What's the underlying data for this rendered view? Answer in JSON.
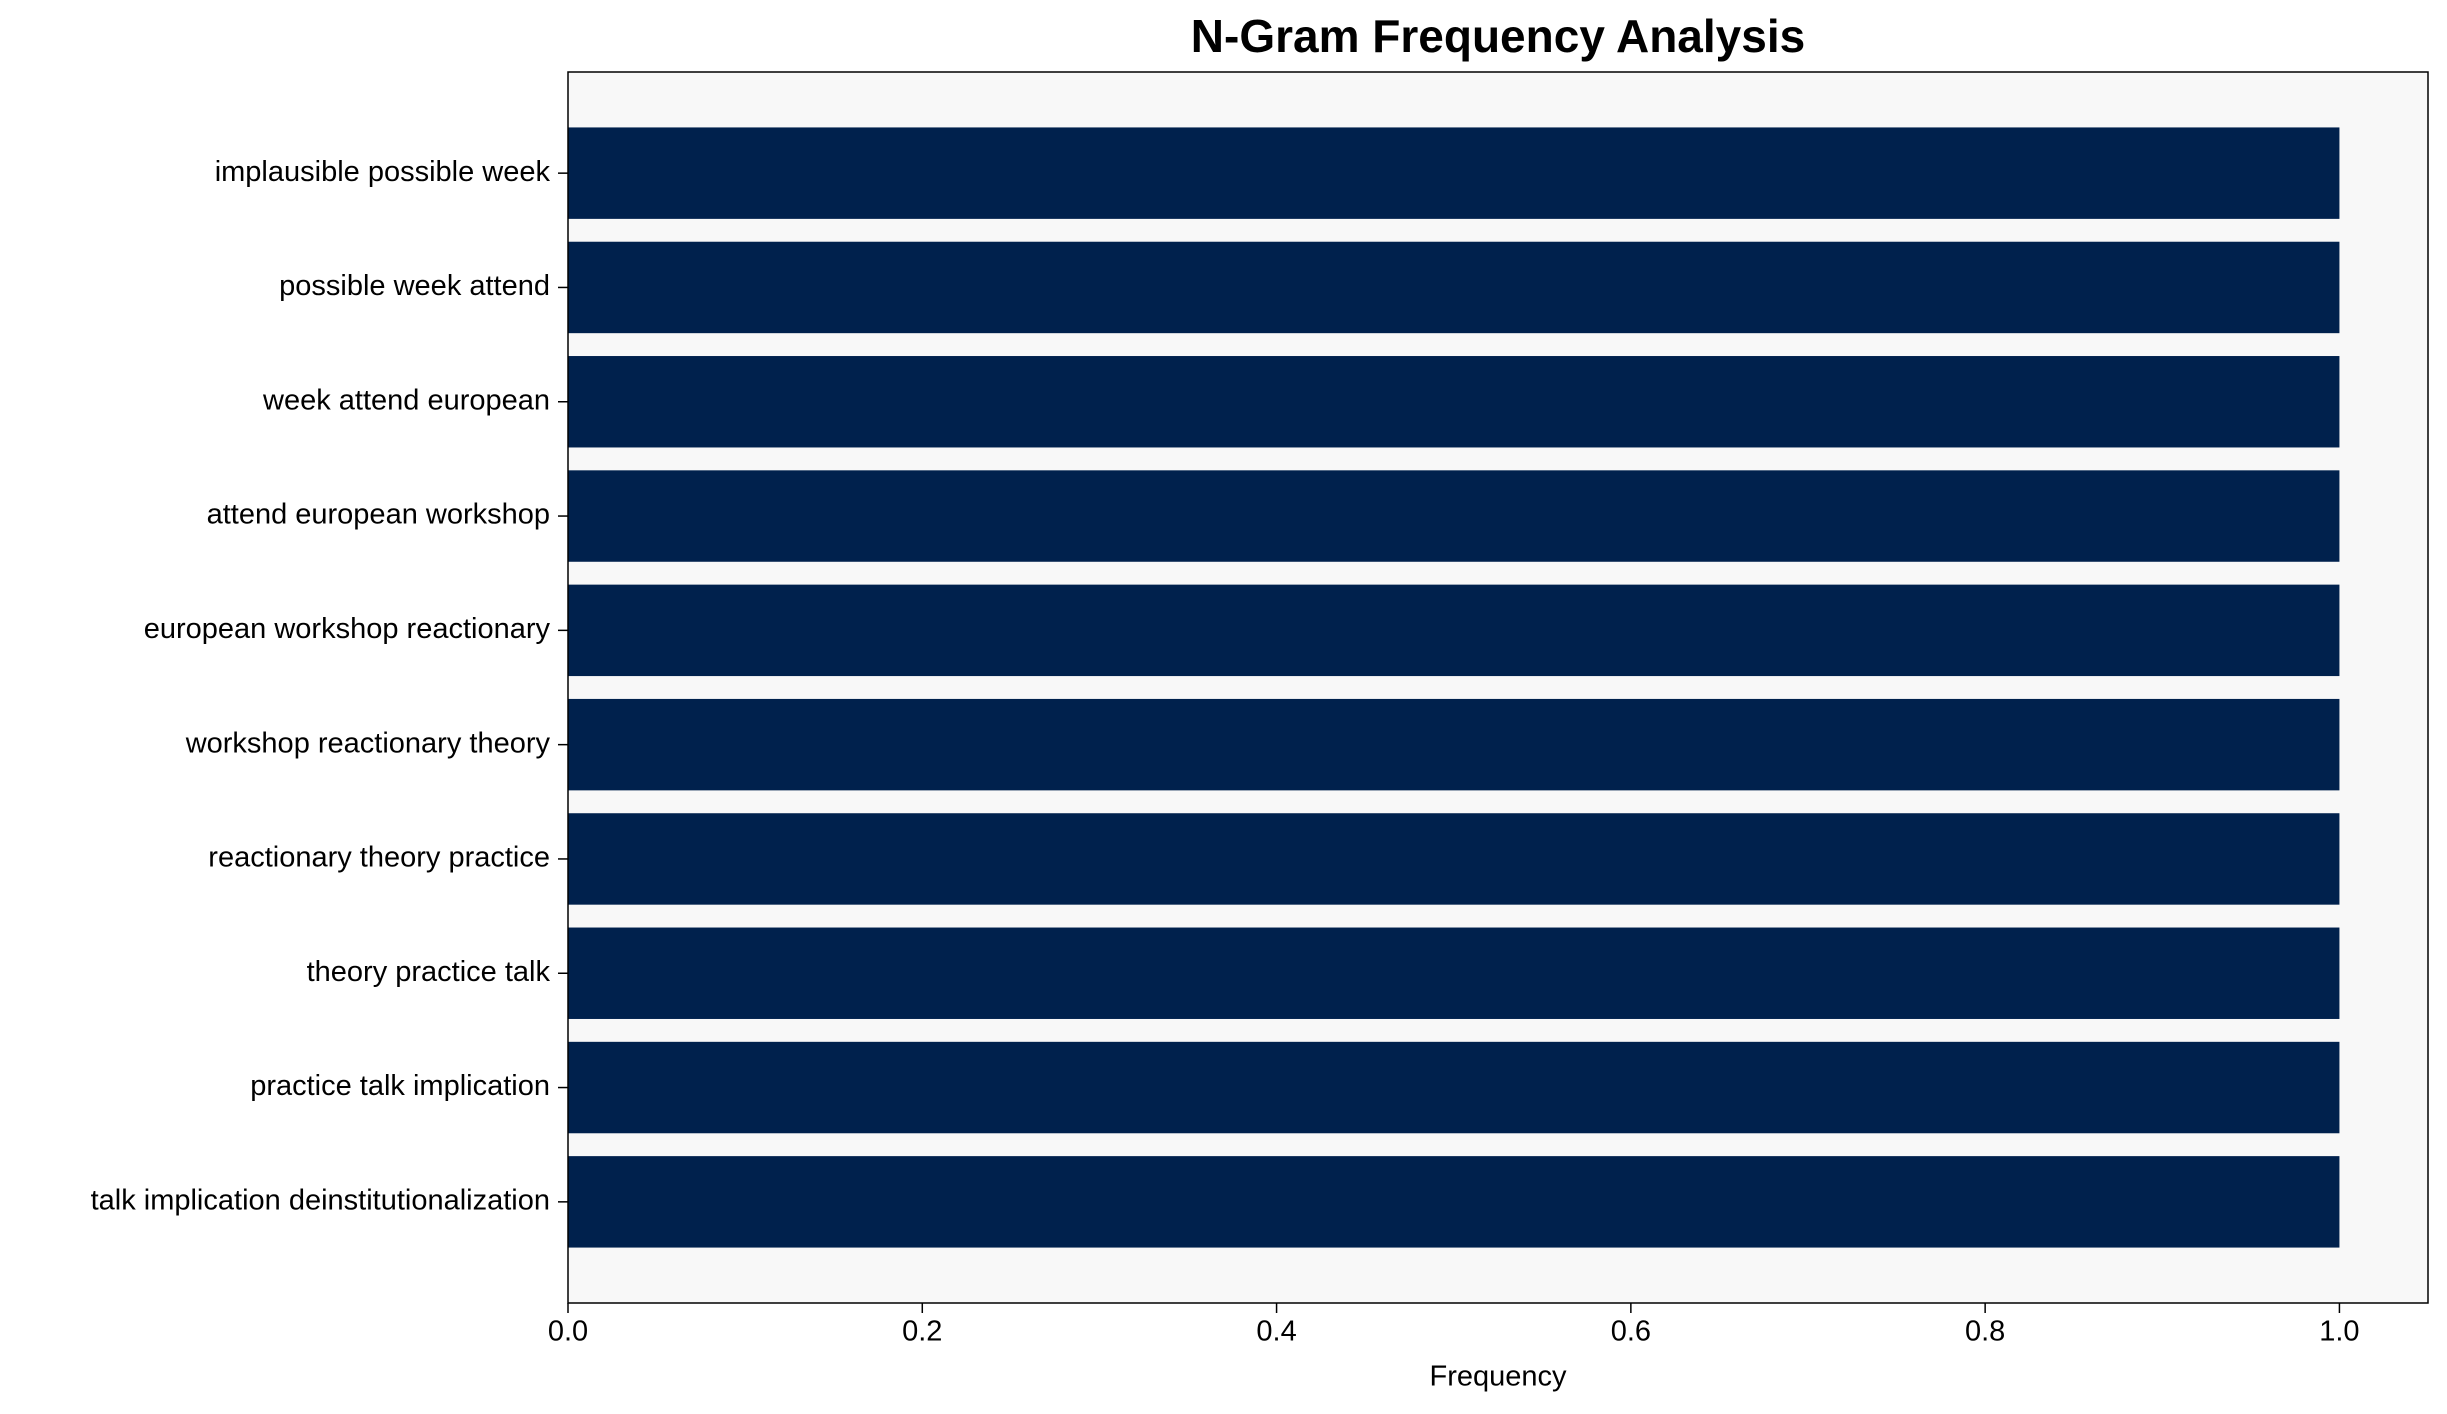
{
  "chart_data": {
    "type": "barh",
    "title": "N-Gram Frequency Analysis",
    "xlabel": "Frequency",
    "categories": [
      "implausible possible week",
      "possible week attend",
      "week attend european",
      "attend european workshop",
      "european workshop reactionary",
      "workshop reactionary theory",
      "reactionary theory practice",
      "theory practice talk",
      "practice talk implication",
      "talk implication deinstitutionalization"
    ],
    "values": [
      1,
      1,
      1,
      1,
      1,
      1,
      1,
      1,
      1,
      1
    ],
    "color": "#00214d",
    "xlim": [
      0,
      1.05
    ],
    "xticks": [
      {
        "value": 0,
        "label": "0.0"
      },
      0.2,
      0.4,
      0.6,
      0.8,
      {
        "value": 1,
        "label": "1.0"
      }
    ],
    "grid": false
  }
}
